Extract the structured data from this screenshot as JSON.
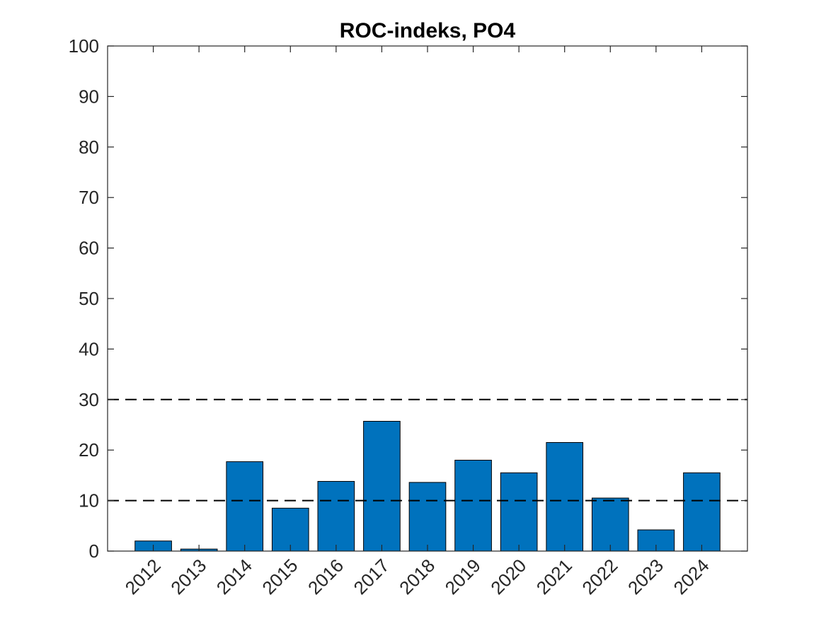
{
  "chart_data": {
    "type": "bar",
    "title": "ROC-indeks, PO4",
    "xlabel": "",
    "ylabel": "",
    "categories": [
      "2012",
      "2013",
      "2014",
      "2015",
      "2016",
      "2017",
      "2018",
      "2019",
      "2020",
      "2021",
      "2022",
      "2023",
      "2024"
    ],
    "values": [
      2.0,
      0.4,
      17.7,
      8.5,
      13.8,
      25.7,
      13.6,
      18.0,
      15.5,
      21.5,
      10.5,
      4.2,
      15.5
    ],
    "ylim": [
      0,
      100
    ],
    "yticks": [
      "0",
      "10",
      "20",
      "30",
      "40",
      "50",
      "60",
      "70",
      "80",
      "90",
      "100"
    ],
    "reference_lines": [
      10,
      30
    ],
    "grid": false,
    "colors": {
      "bar": "#0072BD",
      "bar_edge": "#000000",
      "axes": "#262626",
      "reference_line": "#000000"
    }
  }
}
